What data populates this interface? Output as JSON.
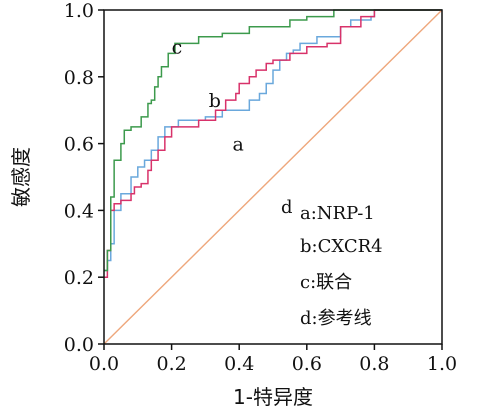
{
  "chart_data": {
    "type": "line",
    "title": "",
    "xlabel": "1-特异度",
    "ylabel": "敏感度",
    "xlim": [
      0,
      1
    ],
    "ylim": [
      0,
      1
    ],
    "x_ticks": [
      "0.0",
      "0.2",
      "0.4",
      "0.6",
      "0.8",
      "1.0"
    ],
    "y_ticks": [
      "0.0",
      "0.2",
      "0.4",
      "0.6",
      "0.8",
      "1.0"
    ],
    "grid": false,
    "legend_title": "d",
    "legend_position": "right",
    "legend_entries": [
      "a:NRP-1",
      "b:CXCR4",
      "c:联合",
      "d:参考线"
    ],
    "series": [
      {
        "name": "a",
        "color": "#6aa8dc",
        "x": [
          0,
          0.01,
          0.01,
          0.02,
          0.02,
          0.03,
          0.03,
          0.05,
          0.05,
          0.08,
          0.08,
          0.1,
          0.1,
          0.12,
          0.12,
          0.14,
          0.14,
          0.16,
          0.16,
          0.18,
          0.18,
          0.22,
          0.22,
          0.3,
          0.3,
          0.35,
          0.35,
          0.43,
          0.43,
          0.46,
          0.46,
          0.48,
          0.48,
          0.5,
          0.5,
          0.52,
          0.52,
          0.54,
          0.54,
          0.56,
          0.56,
          0.58,
          0.58,
          0.63,
          0.63,
          0.7,
          0.7,
          0.73,
          0.73,
          0.79,
          0.79,
          0.8,
          0.8,
          0.88,
          0.88,
          1.0
        ],
        "y": [
          0.22,
          0.22,
          0.25,
          0.25,
          0.3,
          0.3,
          0.4,
          0.4,
          0.45,
          0.45,
          0.5,
          0.5,
          0.53,
          0.53,
          0.55,
          0.55,
          0.58,
          0.58,
          0.62,
          0.62,
          0.65,
          0.65,
          0.67,
          0.67,
          0.68,
          0.68,
          0.7,
          0.7,
          0.73,
          0.73,
          0.75,
          0.75,
          0.78,
          0.78,
          0.82,
          0.82,
          0.85,
          0.85,
          0.87,
          0.87,
          0.88,
          0.88,
          0.9,
          0.9,
          0.92,
          0.92,
          0.95,
          0.95,
          0.97,
          0.97,
          0.98,
          0.98,
          1.0,
          1.0,
          1.0,
          1.0
        ]
      },
      {
        "name": "b",
        "color": "#d8326a",
        "x": [
          0,
          0.01,
          0.01,
          0.02,
          0.02,
          0.03,
          0.03,
          0.05,
          0.05,
          0.08,
          0.08,
          0.09,
          0.09,
          0.11,
          0.11,
          0.13,
          0.13,
          0.14,
          0.14,
          0.16,
          0.16,
          0.18,
          0.18,
          0.2,
          0.2,
          0.28,
          0.28,
          0.33,
          0.33,
          0.36,
          0.36,
          0.39,
          0.39,
          0.4,
          0.4,
          0.43,
          0.43,
          0.45,
          0.45,
          0.48,
          0.48,
          0.5,
          0.5,
          0.55,
          0.55,
          0.6,
          0.6,
          0.66,
          0.66,
          0.7,
          0.7,
          0.76,
          0.76,
          0.8,
          0.8,
          1.0
        ],
        "y": [
          0.2,
          0.2,
          0.28,
          0.28,
          0.4,
          0.4,
          0.42,
          0.42,
          0.43,
          0.43,
          0.45,
          0.45,
          0.47,
          0.47,
          0.48,
          0.48,
          0.52,
          0.52,
          0.55,
          0.55,
          0.58,
          0.58,
          0.62,
          0.62,
          0.65,
          0.65,
          0.67,
          0.67,
          0.7,
          0.7,
          0.73,
          0.73,
          0.75,
          0.75,
          0.78,
          0.78,
          0.8,
          0.8,
          0.82,
          0.82,
          0.84,
          0.84,
          0.85,
          0.85,
          0.87,
          0.87,
          0.89,
          0.89,
          0.9,
          0.9,
          0.95,
          0.95,
          0.98,
          0.98,
          1.0,
          1.0
        ]
      },
      {
        "name": "c",
        "color": "#3c9a4c",
        "x": [
          0,
          0.01,
          0.01,
          0.02,
          0.02,
          0.03,
          0.03,
          0.05,
          0.05,
          0.06,
          0.06,
          0.08,
          0.08,
          0.11,
          0.11,
          0.13,
          0.13,
          0.14,
          0.14,
          0.15,
          0.15,
          0.16,
          0.16,
          0.17,
          0.17,
          0.19,
          0.19,
          0.21,
          0.21,
          0.28,
          0.28,
          0.35,
          0.35,
          0.43,
          0.43,
          0.55,
          0.55,
          0.6,
          0.6,
          0.68,
          0.68,
          0.78,
          0.78,
          1.0
        ],
        "y": [
          0.22,
          0.22,
          0.28,
          0.28,
          0.44,
          0.44,
          0.55,
          0.55,
          0.6,
          0.6,
          0.64,
          0.64,
          0.65,
          0.65,
          0.68,
          0.68,
          0.72,
          0.72,
          0.73,
          0.73,
          0.77,
          0.77,
          0.8,
          0.8,
          0.83,
          0.83,
          0.87,
          0.87,
          0.9,
          0.9,
          0.92,
          0.92,
          0.93,
          0.93,
          0.95,
          0.95,
          0.97,
          0.97,
          0.98,
          0.98,
          1.0,
          1.0,
          1.0,
          1.0
        ]
      },
      {
        "name": "d",
        "color": "#eea77c",
        "x": [
          0,
          1
        ],
        "y": [
          0,
          1
        ]
      }
    ],
    "curve_labels": [
      {
        "text": "a",
        "x": 0.38,
        "y": 0.58
      },
      {
        "text": "b",
        "x": 0.31,
        "y": 0.71
      },
      {
        "text": "c",
        "x": 0.2,
        "y": 0.87
      }
    ]
  }
}
